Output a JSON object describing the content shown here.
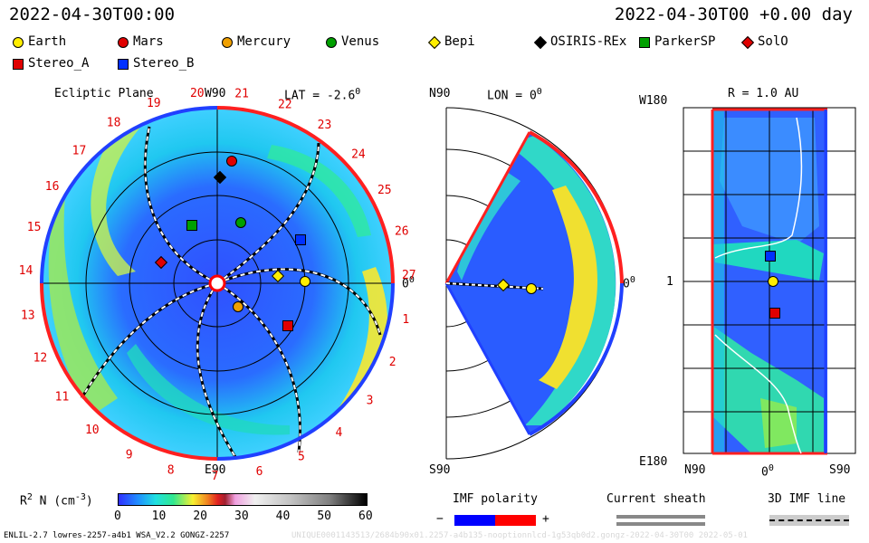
{
  "header": {
    "left_time": "2022-04-30T00:00",
    "right_time": "2022-04-30T00 +0.00 day"
  },
  "legend": [
    {
      "label": "Earth",
      "shape": "circle",
      "color": "#ffee00"
    },
    {
      "label": "Mars",
      "shape": "circle",
      "color": "#e00000"
    },
    {
      "label": "Mercury",
      "shape": "circle",
      "color": "#f0a000"
    },
    {
      "label": "Venus",
      "shape": "circle",
      "color": "#00a000"
    },
    {
      "label": "Bepi",
      "shape": "diamond",
      "color": "#ffee00"
    },
    {
      "label": "OSIRIS-REx",
      "shape": "diamond",
      "color": "#000000"
    },
    {
      "label": "ParkerSP",
      "shape": "square",
      "color": "#00a000"
    },
    {
      "label": "SolO",
      "shape": "diamond",
      "color": "#e00000"
    },
    {
      "label": "Stereo_A",
      "shape": "square",
      "color": "#e00000"
    },
    {
      "label": "Stereo_B",
      "shape": "square",
      "color": "#0030ff"
    }
  ],
  "panels": {
    "ecliptic": {
      "title": "Ecliptic Plane",
      "lat": "LAT = -2.6",
      "lat_sup": "0",
      "top": "W90",
      "bottom": "E90",
      "right": "0",
      "right_sup": "0",
      "rotation_labels": [
        "20",
        "21",
        "22",
        "23",
        "24",
        "25",
        "26",
        "27",
        "1",
        "2",
        "3",
        "4",
        "5",
        "6",
        "7",
        "8",
        "9",
        "10",
        "11",
        "12",
        "13",
        "14",
        "15",
        "16",
        "17",
        "18",
        "19"
      ]
    },
    "meridional": {
      "top": "N90",
      "lon": "LON = 0",
      "lon_sup": "0",
      "bottom": "S90",
      "right": "0",
      "right_sup": "0"
    },
    "sphere": {
      "top": "W180",
      "title": "R = 1.0 AU",
      "left_mid": "1",
      "bottom": "E180",
      "x_left": "N90",
      "x_mid": "0",
      "x_mid_sup": "0",
      "x_right": "S90"
    }
  },
  "colorbar": {
    "label": "R",
    "label_sup": "2",
    "label_rest": " N (cm",
    "label_exp": "-3",
    "label_close": ")",
    "ticks": [
      "0",
      "10",
      "20",
      "30",
      "40",
      "50",
      "60"
    ]
  },
  "imf": {
    "title": "IMF polarity",
    "minus": "−",
    "plus": "+",
    "negative_color": "#0000ff",
    "positive_color": "#ff0000"
  },
  "sheath": {
    "title": "Current sheath"
  },
  "imf_line": {
    "title": "3D IMF line"
  },
  "footer": {
    "left": "ENLIL-2.7 lowres-2257-a4b1 WSA_V2.2 GONGZ-2257",
    "watermark": "UNIQUE0001143513/2684b90x01.2257-a4b135-nooptionnlcd-1g53qb0d2.gongz-2022-04-30T00 2022-05-01"
  },
  "chart_data": [
    {
      "type": "heatmap",
      "title": "Ecliptic Plane",
      "quantity": "R^2 N (cm^-3)",
      "scale": [
        0,
        60
      ],
      "bodies": [
        "Earth",
        "Mars",
        "Mercury",
        "Venus",
        "Bepi",
        "OSIRIS-REx",
        "ParkerSP",
        "SolO",
        "Stereo_A",
        "Stereo_B"
      ]
    },
    {
      "type": "heatmap",
      "title": "LON = 0",
      "quantity": "R^2 N (cm^-3)",
      "scale": [
        0,
        60
      ],
      "bodies": [
        "Bepi",
        "Earth"
      ]
    },
    {
      "type": "heatmap",
      "title": "R = 1.0 AU",
      "quantity": "R^2 N (cm^-3)",
      "scale": [
        0,
        60
      ],
      "x_ticks": [
        "N90",
        "0",
        "S90"
      ],
      "y_ticks": [
        "W180",
        "1",
        "E180"
      ],
      "bodies": [
        "Stereo_B",
        "Earth",
        "Stereo_A"
      ]
    }
  ]
}
